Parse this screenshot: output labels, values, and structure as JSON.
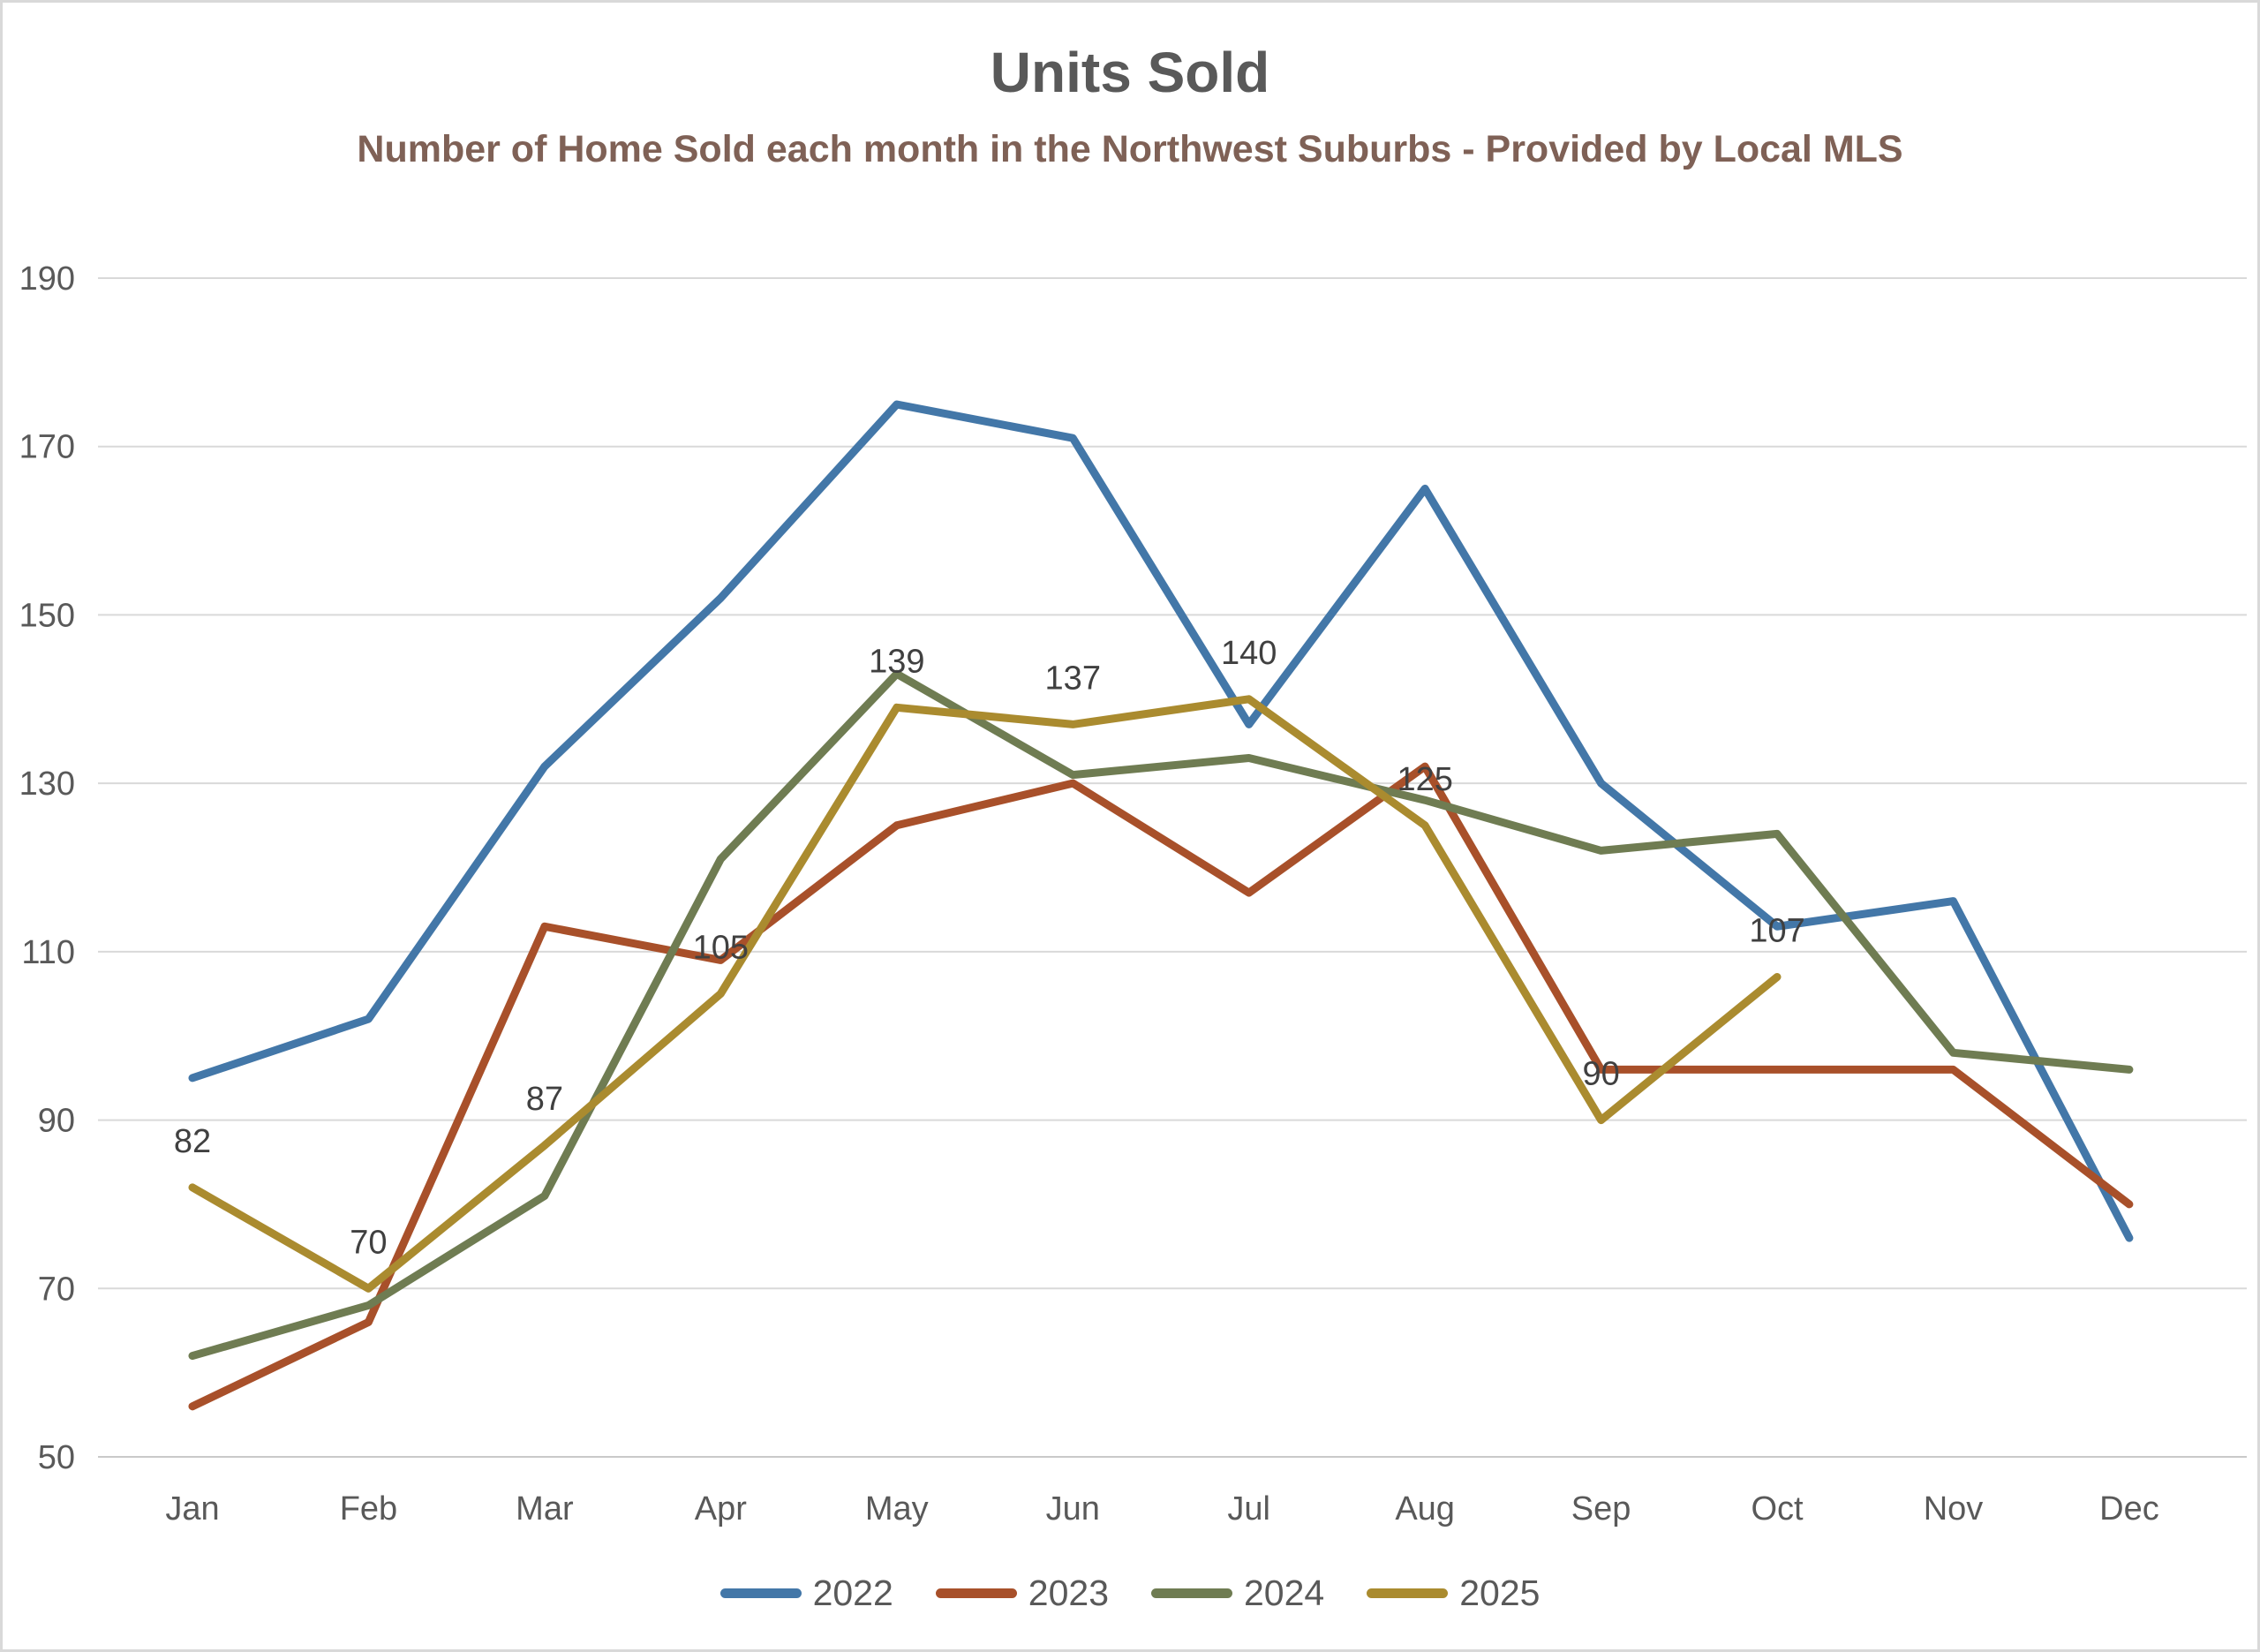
{
  "title": "Units Sold",
  "subtitle": "Number of Home Sold each month in the Northwest Suburbs - Provided by Local MLS",
  "colors": {
    "title_text": "#595959",
    "subtitle_text": "#7F6156",
    "axis_text": "#595959",
    "gridline": "#D9D9D9",
    "axis_line": "#C9C9C9",
    "data_label_text": "#404040",
    "background": "#FFFFFF",
    "border": "#D9D9D9"
  },
  "chart_data": {
    "type": "line",
    "title": "Units Sold",
    "subtitle": "Number of Home Sold each month in the Northwest Suburbs - Provided by Local MLS",
    "categories": [
      "Jan",
      "Feb",
      "Mar",
      "Apr",
      "May",
      "Jun",
      "Jul",
      "Aug",
      "Sep",
      "Oct",
      "Nov",
      "Dec"
    ],
    "xlabel": "",
    "ylabel": "",
    "ylim": [
      50,
      190
    ],
    "y_ticks": [
      190,
      170,
      150,
      130,
      110,
      90,
      70,
      50
    ],
    "grid": "horizontal",
    "legend_position": "bottom",
    "series": [
      {
        "name": "2022",
        "color": "#4377A8",
        "show_data_labels": false,
        "values": [
          95,
          102,
          132,
          152,
          175,
          171,
          137,
          165,
          130,
          113,
          116,
          76
        ]
      },
      {
        "name": "2023",
        "color": "#A8502A",
        "show_data_labels": false,
        "values": [
          56,
          66,
          113,
          109,
          125,
          130,
          117,
          132,
          96,
          96,
          96,
          80
        ]
      },
      {
        "name": "2024",
        "color": "#6F7C52",
        "show_data_labels": false,
        "values": [
          62,
          68,
          81,
          121,
          143,
          131,
          133,
          128,
          122,
          124,
          98,
          96
        ]
      },
      {
        "name": "2025",
        "color": "#AA8B2F",
        "show_data_labels": true,
        "values": [
          82,
          70,
          87,
          105,
          139,
          137,
          140,
          125,
          90,
          107,
          null,
          null
        ]
      }
    ]
  }
}
